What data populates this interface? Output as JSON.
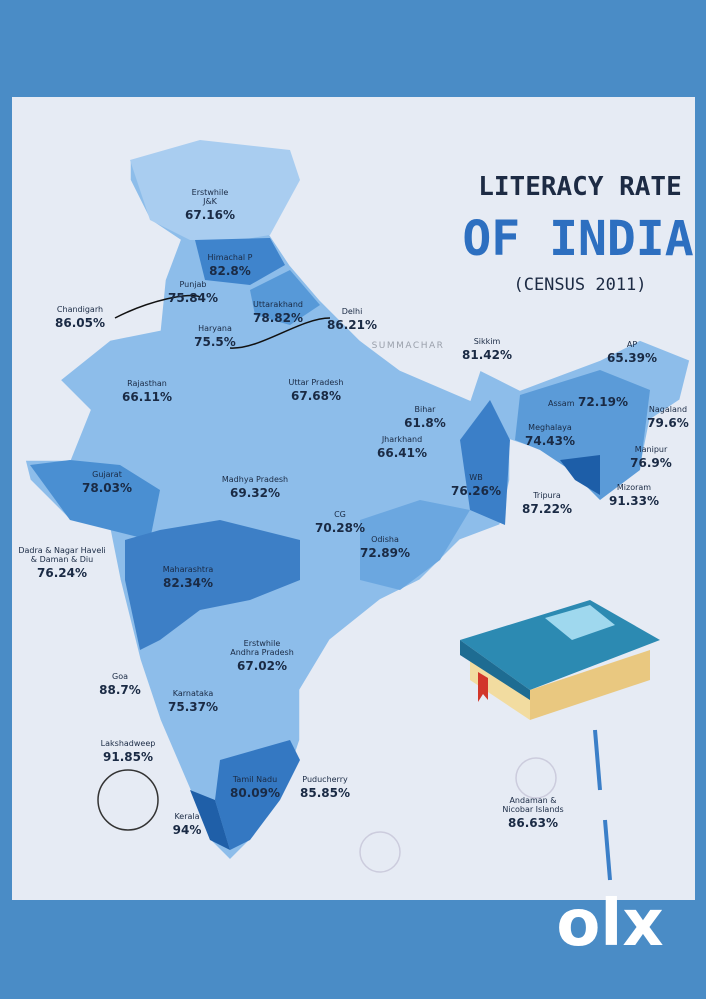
{
  "title": {
    "line1": "LITERACY RATE",
    "line2": "OF INDIA",
    "line3": "(CENSUS 2011)"
  },
  "watermark": "SUMMACHAR",
  "brand": "olx",
  "regions": [
    {
      "name": [
        "Erstwhile",
        "J&K"
      ],
      "value": "67.16%"
    },
    {
      "name": [
        "Himachal P"
      ],
      "value": "82.8%"
    },
    {
      "name": [
        "Punjab"
      ],
      "value": "75.84%"
    },
    {
      "name": [
        "Chandigarh"
      ],
      "value": "86.05%"
    },
    {
      "name": [
        "Uttarakhand"
      ],
      "value": "78.82%"
    },
    {
      "name": [
        "Delhi"
      ],
      "value": "86.21%"
    },
    {
      "name": [
        "Haryana"
      ],
      "value": "75.5%"
    },
    {
      "name": [
        "Sikkim"
      ],
      "value": "81.42%"
    },
    {
      "name": [
        "AP"
      ],
      "value": "65.39%"
    },
    {
      "name": [
        "Rajasthan"
      ],
      "value": "66.11%"
    },
    {
      "name": [
        "Uttar Pradesh"
      ],
      "value": "67.68%"
    },
    {
      "name": [
        "Assam"
      ],
      "value": "72.19%"
    },
    {
      "name": [
        "Nagaland"
      ],
      "value": "79.6%"
    },
    {
      "name": [
        "Bihar"
      ],
      "value": "61.8%"
    },
    {
      "name": [
        "Meghalaya"
      ],
      "value": "74.43%"
    },
    {
      "name": [
        "Manipur"
      ],
      "value": "76.9%"
    },
    {
      "name": [
        "Jharkhand"
      ],
      "value": "66.41%"
    },
    {
      "name": [
        "Gujarat"
      ],
      "value": "78.03%"
    },
    {
      "name": [
        "Madhya Pradesh"
      ],
      "value": "69.32%"
    },
    {
      "name": [
        "WB"
      ],
      "value": "76.26%"
    },
    {
      "name": [
        "Tripura"
      ],
      "value": "87.22%"
    },
    {
      "name": [
        "Mizoram"
      ],
      "value": "91.33%"
    },
    {
      "name": [
        "CG"
      ],
      "value": "70.28%"
    },
    {
      "name": [
        "Odisha"
      ],
      "value": "72.89%"
    },
    {
      "name": [
        "Dadra & Nagar Haveli",
        "& Daman & Diu"
      ],
      "value": "76.24%"
    },
    {
      "name": [
        "Maharashtra"
      ],
      "value": "82.34%"
    },
    {
      "name": [
        "Erstwhile",
        "Andhra Pradesh"
      ],
      "value": "67.02%"
    },
    {
      "name": [
        "Goa"
      ],
      "value": "88.7%"
    },
    {
      "name": [
        "Karnataka"
      ],
      "value": "75.37%"
    },
    {
      "name": [
        "Lakshadweep"
      ],
      "value": "91.85%"
    },
    {
      "name": [
        "Tamil Nadu"
      ],
      "value": "80.09%"
    },
    {
      "name": [
        "Puducherry"
      ],
      "value": "85.85%"
    },
    {
      "name": [
        "Kerala"
      ],
      "value": "94%"
    },
    {
      "name": [
        "Andaman &",
        "Nicobar Islands"
      ],
      "value": "86.63%"
    }
  ]
}
